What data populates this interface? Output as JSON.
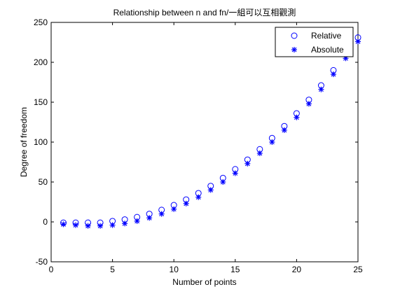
{
  "chart_data": {
    "type": "scatter",
    "title": "Relationship between n and fn/一組可以互相觀測",
    "xlabel": "Number of points",
    "ylabel": "Degree of freedom",
    "xlim": [
      0,
      25
    ],
    "ylim": [
      -50,
      250
    ],
    "xticks": [
      0,
      5,
      10,
      15,
      20,
      25
    ],
    "yticks": [
      -50,
      0,
      50,
      100,
      150,
      200,
      250
    ],
    "grid": false,
    "legend_position": "top-right",
    "series": [
      {
        "name": "Relative",
        "marker": "circle",
        "color": "#0000ff",
        "x": [
          1,
          2,
          3,
          4,
          5,
          6,
          7,
          8,
          9,
          10,
          11,
          12,
          13,
          14,
          15,
          16,
          17,
          18,
          19,
          20,
          21,
          22,
          23,
          24,
          25
        ],
        "y": [
          -1,
          -1,
          -1,
          -1,
          1,
          3,
          6,
          10,
          15,
          21,
          28,
          36,
          45,
          55,
          66,
          78,
          91,
          105,
          120,
          136,
          153,
          171,
          190,
          210,
          231
        ]
      },
      {
        "name": "Absolute",
        "marker": "asterisk",
        "color": "#0000ff",
        "x": [
          1,
          2,
          3,
          4,
          5,
          6,
          7,
          8,
          9,
          10,
          11,
          12,
          13,
          14,
          15,
          16,
          17,
          18,
          19,
          20,
          21,
          22,
          23,
          24,
          25
        ],
        "y": [
          -3,
          -4,
          -5,
          -5,
          -4,
          -2,
          1,
          5,
          10,
          16,
          23,
          31,
          40,
          50,
          61,
          73,
          86,
          100,
          115,
          131,
          148,
          166,
          185,
          205,
          226
        ]
      }
    ]
  }
}
